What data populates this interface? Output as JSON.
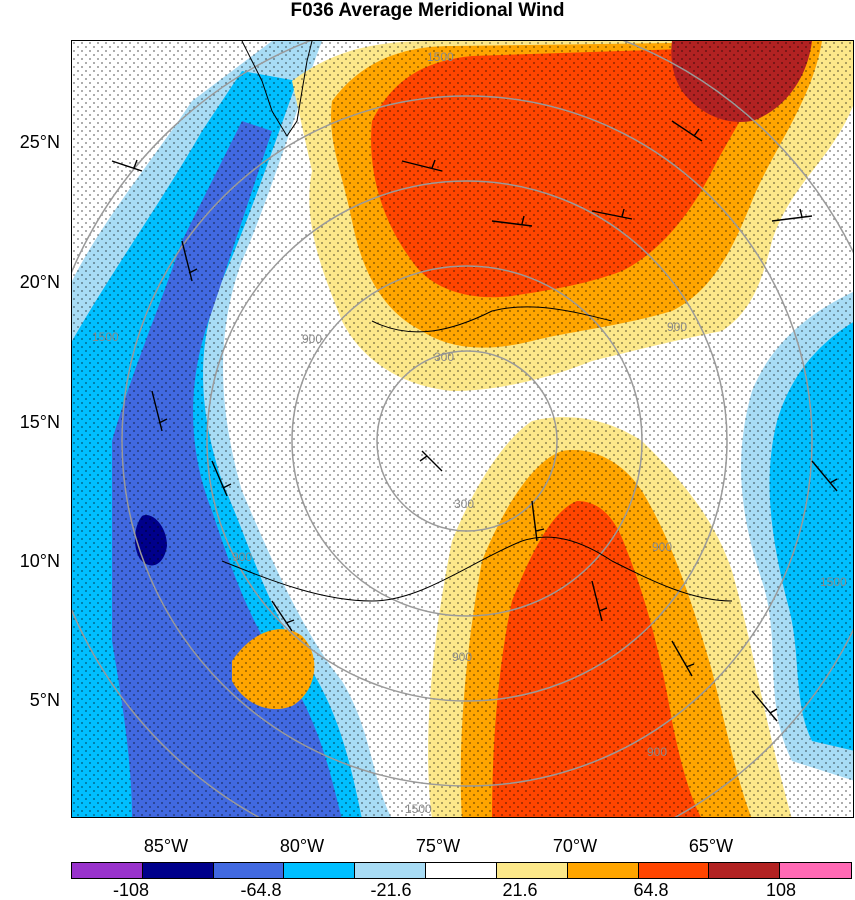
{
  "title": "F036 Average Meridional Wind",
  "lat_labels": [
    "25°N",
    "20°N",
    "15°N",
    "10°N",
    "5°N"
  ],
  "lon_labels": [
    "85°W",
    "80°W",
    "75°W",
    "70°W",
    "65°W"
  ],
  "colorbar": {
    "labels": [
      "-108",
      "-64.8",
      "-21.6",
      "21.6",
      "64.8",
      "108"
    ],
    "colors": [
      "#9932cc",
      "#00008b",
      "#4169e1",
      "#00bfff",
      "#a8dcf5",
      "#ffffff",
      "#fce88a",
      "#ffa500",
      "#ff4500",
      "#b22222",
      "#ff69b4"
    ]
  },
  "contour_labels": [
    "1500",
    "900",
    "300",
    "300",
    "900",
    "900",
    "1500",
    "900",
    "900",
    "1500",
    "1500",
    "900"
  ],
  "colors": {
    "strong_south": "#00008b",
    "south": "#4169e1",
    "mid_south": "#00bfff",
    "weak_south": "#a8dcf5",
    "neutral": "#ffffff",
    "weak_north": "#fce88a",
    "north": "#ffa500",
    "mid_north": "#ff4500",
    "strong_north": "#b22222",
    "range_ring": "#9a9a9a",
    "coastline": "#000000"
  }
}
